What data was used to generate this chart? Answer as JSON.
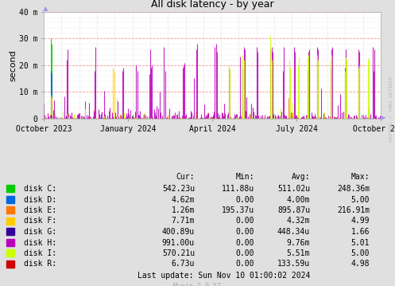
{
  "title": "All disk latency - by year",
  "ylabel": "second",
  "background_color": "#e0e0e0",
  "plot_bg_color": "#ffffff",
  "ylim": [
    0,
    40
  ],
  "ytick_labels": [
    "0",
    "10 m",
    "20 m",
    "30 m",
    "40 m"
  ],
  "xtick_labels": [
    "October 2023",
    "January 2024",
    "April 2024",
    "July 2024",
    "October 2024"
  ],
  "disks": [
    "disk C:",
    "disk D:",
    "disk E:",
    "disk F:",
    "disk G:",
    "disk H:",
    "disk I:",
    "disk R:"
  ],
  "disk_colors": [
    "#00cc00",
    "#0066dd",
    "#ff7700",
    "#ffcc00",
    "#330099",
    "#bb00bb",
    "#ccff00",
    "#cc0000"
  ],
  "legend_cols": [
    "Cur:",
    "Min:",
    "Avg:",
    "Max:"
  ],
  "legend_data": [
    [
      "542.23u",
      "111.88u",
      "511.02u",
      "248.36m"
    ],
    [
      "4.62m",
      "0.00",
      "4.00m",
      "5.00"
    ],
    [
      "1.26m",
      "195.37u",
      "895.87u",
      "216.91m"
    ],
    [
      "7.71m",
      "0.00",
      "4.32m",
      "4.99"
    ],
    [
      "400.89u",
      "0.00",
      "448.34u",
      "1.66"
    ],
    [
      "991.00u",
      "0.00",
      "9.76m",
      "5.01"
    ],
    [
      "570.21u",
      "0.00",
      "5.51m",
      "5.00"
    ],
    [
      "6.73u",
      "0.00",
      "133.59u",
      "4.98"
    ]
  ],
  "last_update": "Last update: Sun Nov 10 01:00:02 2024",
  "munin_version": "Munin 2.0.57",
  "watermark": "RRDTOOL / TOBI OETIKER",
  "n_points": 365,
  "seed": 42
}
